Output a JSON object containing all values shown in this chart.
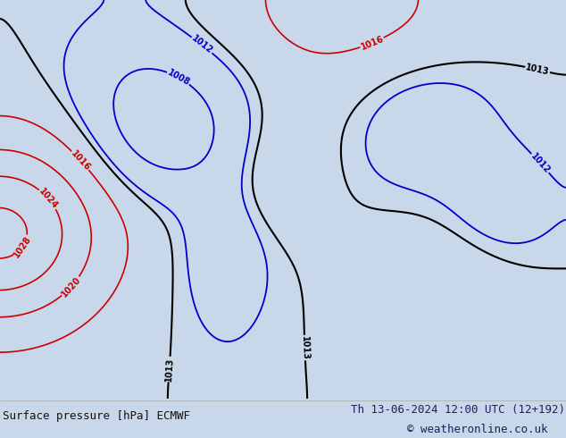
{
  "title_left": "Surface pressure [hPa] ECMWF",
  "title_right": "Th 13-06-2024 12:00 UTC (12+192)",
  "copyright": "© weatheronline.co.uk",
  "bg_color": "#c8d8ea",
  "ocean_color": "#c8d8ea",
  "land_color": "#c8e6b4",
  "gray_color": "#b0b8a8",
  "text_color_left": "#111111",
  "text_color_right": "#1a2060",
  "footer_bg": "#dde4ee",
  "isobar_blue": "#0000cc",
  "isobar_red": "#cc0000",
  "isobar_black": "#000000",
  "font_size_footer": 9,
  "fig_width": 6.34,
  "fig_height": 4.9,
  "lon_min": -175,
  "lon_max": -50,
  "lat_min": 15,
  "lat_max": 80
}
